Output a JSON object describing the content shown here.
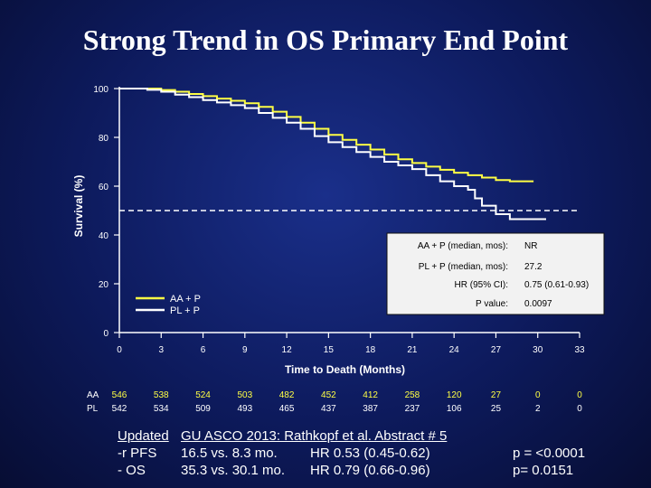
{
  "title": "Strong Trend in OS Primary End Point",
  "chart_data": {
    "type": "line",
    "title": "Strong Trend in OS Primary End Point",
    "xlabel": "Time to Death (Months)",
    "ylabel": "Survival (%)",
    "xlim": [
      0,
      33
    ],
    "ylim": [
      0,
      100
    ],
    "xticks": [
      0,
      3,
      6,
      9,
      12,
      15,
      18,
      21,
      24,
      27,
      30,
      33
    ],
    "yticks": [
      0,
      20,
      40,
      60,
      80,
      100
    ],
    "median_line": 50,
    "series": [
      {
        "name": "AA + P",
        "color": "#ffff44",
        "points": [
          [
            0,
            100
          ],
          [
            1,
            100
          ],
          [
            2,
            100
          ],
          [
            3,
            99.4
          ],
          [
            4,
            98.7
          ],
          [
            5,
            97.8
          ],
          [
            6,
            96.9
          ],
          [
            7,
            95.9
          ],
          [
            8,
            95
          ],
          [
            9,
            94
          ],
          [
            10,
            92.5
          ],
          [
            11,
            90.5
          ],
          [
            12,
            88.4
          ],
          [
            13,
            86
          ],
          [
            14,
            83.5
          ],
          [
            15,
            81
          ],
          [
            16,
            79
          ],
          [
            17,
            77
          ],
          [
            18,
            75
          ],
          [
            19,
            73
          ],
          [
            20,
            71
          ],
          [
            21,
            69.5
          ],
          [
            22,
            68
          ],
          [
            23,
            66.7
          ],
          [
            24,
            65.5
          ],
          [
            25,
            64.5
          ],
          [
            26,
            63.5
          ],
          [
            27,
            62.5
          ],
          [
            28,
            62
          ],
          [
            29,
            62
          ],
          [
            29.7,
            62
          ]
        ]
      },
      {
        "name": "PL + P",
        "color": "#ffffff",
        "points": [
          [
            0,
            100
          ],
          [
            1,
            100
          ],
          [
            2,
            99.5
          ],
          [
            3,
            98.7
          ],
          [
            4,
            97.5
          ],
          [
            5,
            96.5
          ],
          [
            6,
            95.3
          ],
          [
            7,
            94.3
          ],
          [
            8,
            93.2
          ],
          [
            9,
            92
          ],
          [
            10,
            90
          ],
          [
            11,
            88
          ],
          [
            12,
            86
          ],
          [
            13,
            83.5
          ],
          [
            14,
            80.5
          ],
          [
            15,
            78
          ],
          [
            16,
            76
          ],
          [
            17,
            74
          ],
          [
            18,
            72
          ],
          [
            19,
            70
          ],
          [
            20,
            68.5
          ],
          [
            21,
            67
          ],
          [
            22,
            64.5
          ],
          [
            23,
            62
          ],
          [
            24,
            60
          ],
          [
            25,
            58.5
          ],
          [
            25.5,
            55
          ],
          [
            26,
            52
          ],
          [
            27,
            48.5
          ],
          [
            28,
            46.5
          ],
          [
            29,
            46.5
          ],
          [
            30.6,
            46.5
          ]
        ]
      }
    ],
    "legend": [
      "AA + P",
      "PL + P"
    ],
    "legend_position": "bottom-left",
    "annotation_box": [
      {
        "label": "AA + P (median, mos):",
        "value": "NR"
      },
      {
        "label": "PL + P (median, mos):",
        "value": "27.2"
      },
      {
        "label": "HR (95% CI):",
        "value": "0.75 (0.61-0.93)"
      },
      {
        "label": "P value:",
        "value": "0.0097"
      }
    ],
    "at_risk": {
      "rows": [
        {
          "label": "AA",
          "color": "#ffff44",
          "values": [
            "546",
            "538",
            "524",
            "503",
            "482",
            "452",
            "412",
            "258",
            "120",
            "27",
            "0",
            "0"
          ]
        },
        {
          "label": "PL",
          "color": "#ffffff",
          "values": [
            "542",
            "534",
            "509",
            "493",
            "465",
            "437",
            "387",
            "237",
            "106",
            "25",
            "2",
            "0"
          ]
        }
      ]
    }
  },
  "footer": {
    "heading_left": "Updated",
    "heading_right": "GU ASCO 2013: Rathkopf et al. Abstract # 5",
    "rows": [
      {
        "label": "-r PFS",
        "comparison": "16.5 vs. 8.3 mo.",
        "hr": "HR 0.53 (0.45-0.62)",
        "p": "p = <0.0001"
      },
      {
        "label": "- OS",
        "comparison": "35.3 vs. 30.1 mo.",
        "hr": "HR 0.79 (0.66-0.96)",
        "p": "p= 0.0151"
      }
    ]
  }
}
